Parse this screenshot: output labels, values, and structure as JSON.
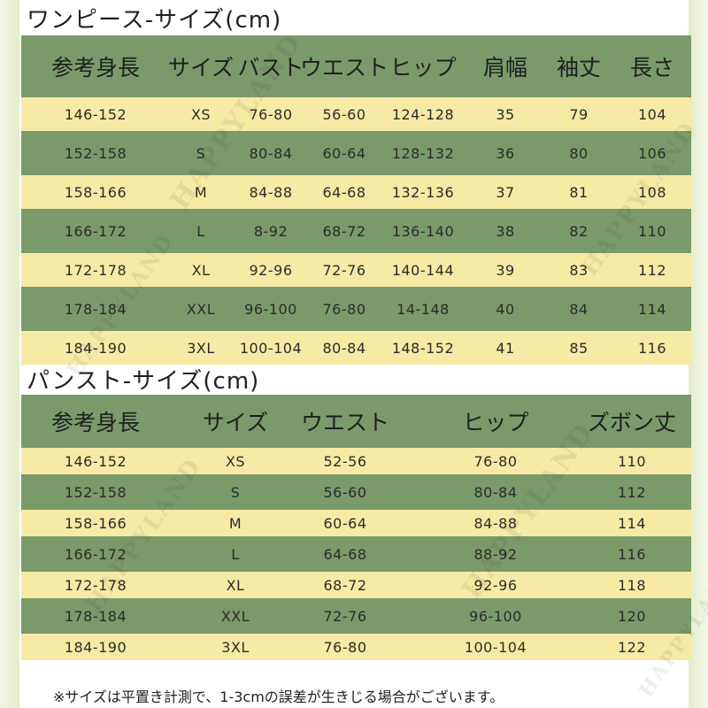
{
  "onepiece": {
    "title": "ワンピース-サイズ(cm)",
    "headers": [
      "参考身長",
      "サイズ",
      "バスト",
      "ウエスト",
      "ヒップ",
      "肩幅",
      "袖丈",
      "長さ"
    ],
    "rows": [
      [
        "146-152",
        "XS",
        "76-80",
        "56-60",
        "124-128",
        "35",
        "79",
        "104"
      ],
      [
        "152-158",
        "S",
        "80-84",
        "60-64",
        "128-132",
        "36",
        "80",
        "106"
      ],
      [
        "158-166",
        "M",
        "84-88",
        "64-68",
        "132-136",
        "37",
        "81",
        "108"
      ],
      [
        "166-172",
        "L",
        "8-92",
        "68-72",
        "136-140",
        "38",
        "82",
        "110"
      ],
      [
        "172-178",
        "XL",
        "92-96",
        "72-76",
        "140-144",
        "39",
        "83",
        "112"
      ],
      [
        "178-184",
        "XXL",
        "96-100",
        "76-80",
        "14-148",
        "40",
        "84",
        "114"
      ],
      [
        "184-190",
        "3XL",
        "100-104",
        "80-84",
        "148-152",
        "41",
        "85",
        "116"
      ]
    ]
  },
  "pants": {
    "title": "パンスト-サイズ(cm)",
    "headers": [
      "参考身長",
      "サイズ",
      "ウエスト",
      "ヒップ",
      "ズボン丈"
    ],
    "rows": [
      [
        "146-152",
        "XS",
        "52-56",
        "76-80",
        "110"
      ],
      [
        "152-158",
        "S",
        "56-60",
        "80-84",
        "112"
      ],
      [
        "158-166",
        "M",
        "60-64",
        "84-88",
        "114"
      ],
      [
        "166-172",
        "L",
        "64-68",
        "88-92",
        "116"
      ],
      [
        "172-178",
        "XL",
        "68-72",
        "92-96",
        "118"
      ],
      [
        "178-184",
        "XXL",
        "72-76",
        "96-100",
        "120"
      ],
      [
        "184-190",
        "3XL",
        "76-80",
        "100-104",
        "122"
      ]
    ]
  },
  "note": "※サイズは平置き計測で、1-3cmの誤差が生きじる場合がございます。",
  "watermark": "HAPPYLAND",
  "colors": {
    "header_green": "#7b9a6a",
    "row_green": "#7b9a6a",
    "row_yellow": "#f6eaa5",
    "frame": "#e3ecc9"
  }
}
